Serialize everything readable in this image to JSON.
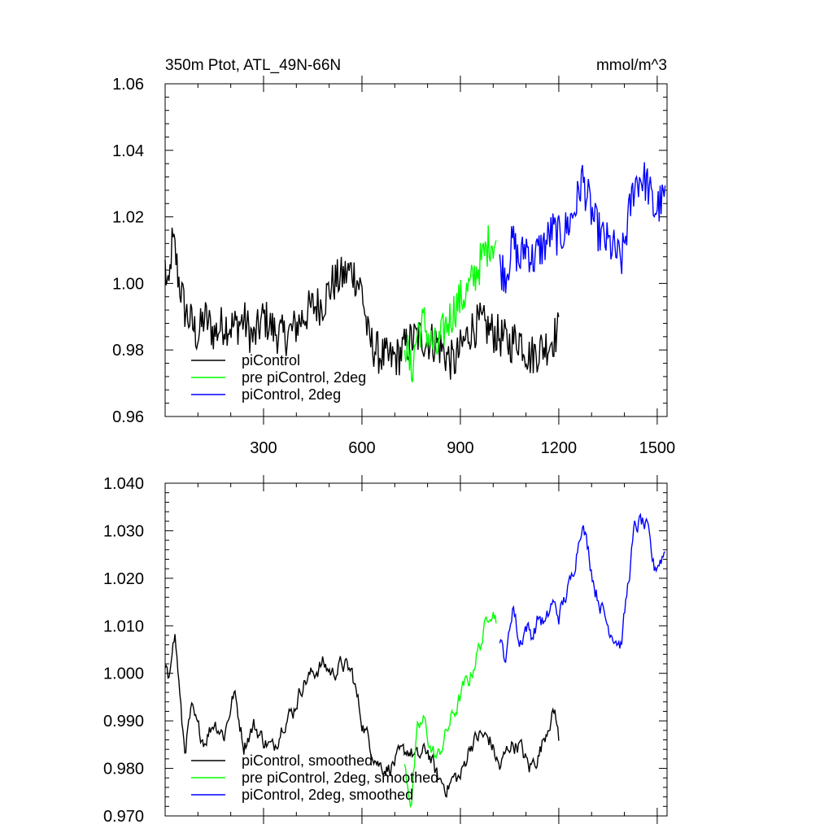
{
  "header": {
    "title": "350m Ptot, ATL_49N-66N",
    "units": "mmol/m^3"
  },
  "colors": {
    "piControl": "#000000",
    "pre_piControl_2deg": "#00ff00",
    "piControl_2deg": "#0000ff"
  },
  "chart_data": [
    {
      "type": "line",
      "panel": "top",
      "title": "350m Ptot, ATL_49N-66N",
      "units": "mmol/m^3",
      "xlim": [
        0,
        1530
      ],
      "ylim": [
        0.96,
        1.06
      ],
      "xticks": [
        300,
        600,
        900,
        1200,
        1500
      ],
      "yticks": [
        "0.96",
        "0.98",
        "1.00",
        "1.02",
        "1.04",
        "1.06"
      ],
      "grid": false,
      "legend_position": "bottom-left",
      "series": [
        {
          "name": "piControl",
          "color": "#000000",
          "points": [
            [
              0,
              1.005
            ],
            [
              10,
              0.995
            ],
            [
              20,
              1.012
            ],
            [
              30,
              1.01
            ],
            [
              40,
              1.002
            ],
            [
              60,
              0.992
            ],
            [
              80,
              0.988
            ],
            [
              100,
              0.984
            ],
            [
              120,
              0.99
            ],
            [
              150,
              0.985
            ],
            [
              180,
              0.988
            ],
            [
              210,
              0.987
            ],
            [
              240,
              0.989
            ],
            [
              270,
              0.983
            ],
            [
              300,
              0.99
            ],
            [
              330,
              0.986
            ],
            [
              360,
              0.984
            ],
            [
              390,
              0.986
            ],
            [
              420,
              0.99
            ],
            [
              450,
              0.993
            ],
            [
              480,
              0.994
            ],
            [
              510,
              1.0
            ],
            [
              540,
              1.002
            ],
            [
              570,
              1.004
            ],
            [
              600,
              0.998
            ],
            [
              620,
              0.983
            ],
            [
              650,
              0.979
            ],
            [
              680,
              0.977
            ],
            [
              710,
              0.978
            ],
            [
              740,
              0.982
            ],
            [
              770,
              0.984
            ],
            [
              800,
              0.983
            ],
            [
              830,
              0.982
            ],
            [
              860,
              0.978
            ],
            [
              880,
              0.976
            ],
            [
              900,
              0.98
            ],
            [
              930,
              0.986
            ],
            [
              960,
              0.988
            ],
            [
              990,
              0.986
            ],
            [
              1020,
              0.984
            ],
            [
              1050,
              0.982
            ],
            [
              1080,
              0.984
            ],
            [
              1110,
              0.978
            ],
            [
              1140,
              0.98
            ],
            [
              1170,
              0.982
            ],
            [
              1200,
              0.986
            ]
          ]
        },
        {
          "name": "pre piControl, 2deg",
          "color": "#00ff00",
          "points": [
            [
              730,
              0.984
            ],
            [
              750,
              0.973
            ],
            [
              770,
              0.986
            ],
            [
              790,
              0.988
            ],
            [
              810,
              0.982
            ],
            [
              830,
              0.98
            ],
            [
              850,
              0.986
            ],
            [
              870,
              0.99
            ],
            [
              890,
              0.994
            ],
            [
              910,
              0.996
            ],
            [
              930,
              0.999
            ],
            [
              950,
              1.004
            ],
            [
              970,
              1.008
            ],
            [
              990,
              1.013
            ],
            [
              1010,
              1.012
            ]
          ]
        },
        {
          "name": "piControl, 2deg",
          "color": "#0000ff",
          "points": [
            [
              1020,
              1.005
            ],
            [
              1040,
              1.003
            ],
            [
              1060,
              1.013
            ],
            [
              1080,
              1.006
            ],
            [
              1100,
              1.012
            ],
            [
              1120,
              1.007
            ],
            [
              1140,
              1.01
            ],
            [
              1160,
              1.012
            ],
            [
              1180,
              1.016
            ],
            [
              1200,
              1.014
            ],
            [
              1220,
              1.016
            ],
            [
              1240,
              1.02
            ],
            [
              1260,
              1.026
            ],
            [
              1270,
              1.032
            ],
            [
              1290,
              1.025
            ],
            [
              1310,
              1.018
            ],
            [
              1330,
              1.014
            ],
            [
              1350,
              1.012
            ],
            [
              1370,
              1.01
            ],
            [
              1390,
              1.006
            ],
            [
              1410,
              1.018
            ],
            [
              1430,
              1.03
            ],
            [
              1450,
              1.032
            ],
            [
              1470,
              1.03
            ],
            [
              1490,
              1.022
            ],
            [
              1510,
              1.024
            ],
            [
              1525,
              1.026
            ]
          ]
        }
      ]
    },
    {
      "type": "line",
      "panel": "bottom",
      "xlim": [
        0,
        1530
      ],
      "ylim": [
        0.97,
        1.04
      ],
      "yticks": [
        "0.970",
        "0.980",
        "0.990",
        "1.000",
        "1.010",
        "1.020",
        "1.030",
        "1.040"
      ],
      "grid": false,
      "legend_position": "bottom-left",
      "series": [
        {
          "name": "piControl, smoothed",
          "color": "#000000",
          "points": [
            [
              0,
              1.001
            ],
            [
              10,
              0.998
            ],
            [
              20,
              1.006
            ],
            [
              30,
              1.008
            ],
            [
              40,
              1.0
            ],
            [
              50,
              0.99
            ],
            [
              60,
              0.984
            ],
            [
              80,
              0.992
            ],
            [
              100,
              0.988
            ],
            [
              120,
              0.986
            ],
            [
              150,
              0.99
            ],
            [
              180,
              0.987
            ],
            [
              210,
              0.996
            ],
            [
              240,
              0.985
            ],
            [
              270,
              0.989
            ],
            [
              300,
              0.986
            ],
            [
              330,
              0.984
            ],
            [
              360,
              0.99
            ],
            [
              390,
              0.992
            ],
            [
              420,
              0.998
            ],
            [
              450,
              1.0
            ],
            [
              480,
              1.002
            ],
            [
              510,
              1.0
            ],
            [
              540,
              1.002
            ],
            [
              570,
              1.0
            ],
            [
              600,
              0.99
            ],
            [
              620,
              0.986
            ],
            [
              650,
              0.981
            ],
            [
              680,
              0.98
            ],
            [
              710,
              0.982
            ],
            [
              740,
              0.984
            ],
            [
              770,
              0.982
            ],
            [
              800,
              0.984
            ],
            [
              830,
              0.978
            ],
            [
              860,
              0.976
            ],
            [
              880,
              0.978
            ],
            [
              900,
              0.978
            ],
            [
              930,
              0.985
            ],
            [
              960,
              0.987
            ],
            [
              990,
              0.986
            ],
            [
              1020,
              0.98
            ],
            [
              1050,
              0.985
            ],
            [
              1080,
              0.985
            ],
            [
              1110,
              0.98
            ],
            [
              1140,
              0.983
            ],
            [
              1170,
              0.99
            ],
            [
              1190,
              0.992
            ],
            [
              1200,
              0.986
            ]
          ]
        },
        {
          "name": "pre piControl, 2deg, smoothed",
          "color": "#00ff00",
          "points": [
            [
              730,
              0.98
            ],
            [
              750,
              0.973
            ],
            [
              770,
              0.988
            ],
            [
              790,
              0.99
            ],
            [
              810,
              0.984
            ],
            [
              830,
              0.982
            ],
            [
              850,
              0.986
            ],
            [
              870,
              0.99
            ],
            [
              890,
              0.993
            ],
            [
              910,
              0.997
            ],
            [
              930,
              0.999
            ],
            [
              950,
              1.004
            ],
            [
              970,
              1.008
            ],
            [
              990,
              1.014
            ],
            [
              1010,
              1.012
            ]
          ]
        },
        {
          "name": "piControl, 2deg, smoothed",
          "color": "#0000ff",
          "points": [
            [
              1020,
              1.006
            ],
            [
              1040,
              1.003
            ],
            [
              1060,
              1.015
            ],
            [
              1080,
              1.006
            ],
            [
              1100,
              1.01
            ],
            [
              1120,
              1.008
            ],
            [
              1140,
              1.012
            ],
            [
              1160,
              1.01
            ],
            [
              1180,
              1.015
            ],
            [
              1200,
              1.012
            ],
            [
              1220,
              1.016
            ],
            [
              1240,
              1.02
            ],
            [
              1260,
              1.028
            ],
            [
              1270,
              1.032
            ],
            [
              1290,
              1.026
            ],
            [
              1310,
              1.018
            ],
            [
              1330,
              1.014
            ],
            [
              1350,
              1.01
            ],
            [
              1370,
              1.008
            ],
            [
              1390,
              1.006
            ],
            [
              1410,
              1.018
            ],
            [
              1430,
              1.03
            ],
            [
              1450,
              1.032
            ],
            [
              1470,
              1.03
            ],
            [
              1490,
              1.022
            ],
            [
              1510,
              1.024
            ],
            [
              1525,
              1.026
            ]
          ]
        }
      ]
    }
  ]
}
